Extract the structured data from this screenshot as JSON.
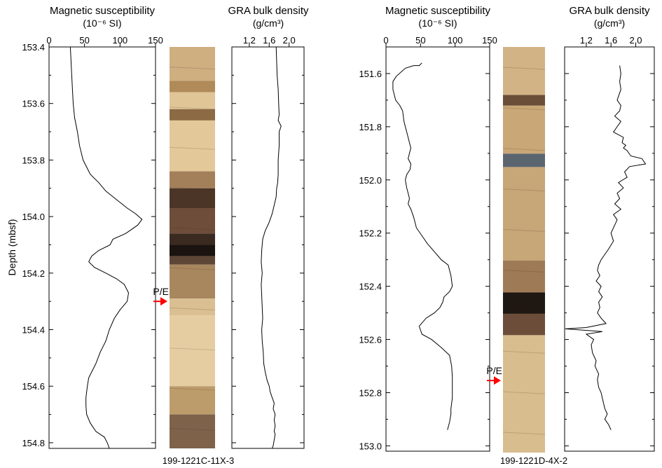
{
  "chart_data": [
    {
      "type": "line",
      "title": "Magnetic susceptibility",
      "units": "(10⁻⁶ SI)",
      "xticks": [
        "0",
        "50",
        "100",
        "150"
      ],
      "xlim": [
        0,
        150
      ],
      "ylabel": "Depth (mbsf)",
      "yticks": [
        "153.4",
        "153.6",
        "153.8",
        "154.0",
        "154.2",
        "154.4",
        "154.6",
        "154.8"
      ],
      "ylim": [
        153.4,
        154.82
      ],
      "y_inverted": true,
      "series": [
        {
          "x": [
            30,
            31,
            32,
            33,
            34,
            36,
            40,
            43,
            48,
            58,
            70,
            80,
            95,
            110,
            122,
            131,
            125,
            108,
            90,
            86,
            70,
            60,
            56,
            64,
            80,
            95,
            106,
            112,
            110,
            100,
            92,
            85,
            80,
            72,
            66,
            60,
            56,
            54,
            52,
            52,
            53,
            58,
            66,
            78,
            82,
            85
          ],
          "y": [
            153.4,
            153.45,
            153.5,
            153.55,
            153.6,
            153.65,
            153.7,
            153.75,
            153.8,
            153.85,
            153.88,
            153.91,
            153.94,
            153.97,
            153.99,
            154.01,
            154.03,
            154.06,
            154.08,
            154.1,
            154.12,
            154.14,
            154.16,
            154.18,
            154.2,
            154.22,
            154.24,
            154.27,
            154.3,
            154.33,
            154.36,
            154.4,
            154.44,
            154.48,
            154.52,
            154.55,
            154.57,
            154.6,
            154.64,
            154.67,
            154.7,
            154.73,
            154.76,
            154.78,
            154.8,
            154.82
          ]
        }
      ]
    },
    {
      "type": "line",
      "title": "GRA bulk density",
      "units": "(g/cm³)",
      "xticks": [
        "1.2",
        "1.6",
        "2.0"
      ],
      "xlim": [
        0.85,
        2.3
      ],
      "ylim": [
        153.4,
        154.82
      ],
      "y_inverted": true,
      "series": [
        {
          "x": [
            1.74,
            1.75,
            1.76,
            1.78,
            1.79,
            1.8,
            1.78,
            1.84,
            1.8,
            1.8,
            1.78,
            1.78,
            1.77,
            1.75,
            1.74,
            1.7,
            1.66,
            1.6,
            1.52,
            1.47,
            1.45,
            1.44,
            1.46,
            1.44,
            1.45,
            1.46,
            1.47,
            1.45,
            1.46,
            1.48,
            1.49,
            1.52,
            1.56,
            1.6,
            1.62,
            1.66,
            1.7,
            1.68,
            1.72,
            1.7,
            1.72,
            1.7,
            1.72,
            1.7,
            1.68,
            1.66
          ],
          "y": [
            153.4,
            153.45,
            153.5,
            153.55,
            153.6,
            153.64,
            153.66,
            153.68,
            153.7,
            153.75,
            153.8,
            153.85,
            153.88,
            153.9,
            153.93,
            153.96,
            153.99,
            154.02,
            154.05,
            154.08,
            154.12,
            154.16,
            154.2,
            154.24,
            154.28,
            154.32,
            154.36,
            154.4,
            154.44,
            154.48,
            154.52,
            154.55,
            154.58,
            154.6,
            154.62,
            154.64,
            154.66,
            154.68,
            154.7,
            154.72,
            154.74,
            154.76,
            154.77,
            154.79,
            154.81,
            154.82
          ]
        }
      ]
    },
    {
      "type": "line",
      "title": "Magnetic susceptibility",
      "units": "(10⁻⁶ SI)",
      "xticks": [
        "0",
        "50",
        "100",
        "150"
      ],
      "xlim": [
        0,
        150
      ],
      "yticks": [
        "151.6",
        "151.8",
        "152.0",
        "152.2",
        "152.4",
        "152.6",
        "152.8",
        "153.0"
      ],
      "ylim": [
        151.5,
        153.02
      ],
      "y_inverted": true,
      "series": [
        {
          "x": [
            52,
            48,
            40,
            28,
            15,
            10,
            10,
            14,
            20,
            24,
            26,
            28,
            30,
            32,
            34,
            36,
            34,
            32,
            36,
            35,
            30,
            28,
            30,
            32,
            34,
            32,
            36,
            40,
            44,
            52,
            60,
            70,
            80,
            90,
            94,
            96,
            92,
            84,
            82,
            78,
            70,
            58,
            48,
            52,
            66,
            80,
            92,
            95,
            96,
            96,
            96,
            94,
            94,
            92,
            90,
            89
          ],
          "y": [
            151.56,
            151.57,
            151.57,
            151.58,
            151.61,
            151.63,
            151.66,
            151.7,
            151.72,
            151.74,
            151.78,
            151.8,
            151.82,
            151.84,
            151.86,
            151.88,
            151.9,
            151.92,
            151.94,
            151.96,
            151.98,
            152.0,
            152.03,
            152.05,
            152.07,
            152.09,
            152.11,
            152.14,
            152.18,
            152.21,
            152.24,
            152.27,
            152.3,
            152.32,
            152.36,
            152.4,
            152.42,
            152.44,
            152.46,
            152.48,
            152.5,
            152.52,
            152.55,
            152.58,
            152.6,
            152.63,
            152.66,
            152.7,
            152.74,
            152.78,
            152.82,
            152.86,
            152.88,
            152.91,
            152.93,
            152.94
          ]
        }
      ]
    },
    {
      "type": "line",
      "title": "GRA bulk density",
      "units": "(g/cm³)",
      "xticks": [
        "1.2",
        "1.6",
        "2.0"
      ],
      "xlim": [
        0.85,
        2.3
      ],
      "ylim": [
        151.5,
        153.02
      ],
      "y_inverted": true,
      "series": [
        {
          "x": [
            1.74,
            1.76,
            1.74,
            1.76,
            1.7,
            1.76,
            1.74,
            1.66,
            1.76,
            1.7,
            1.64,
            1.8,
            1.78,
            1.84,
            1.8,
            1.86,
            1.92,
            2.1,
            2.16,
            1.9,
            1.82,
            1.86,
            1.72,
            1.8,
            1.7,
            1.74,
            1.66,
            1.76,
            1.64,
            1.7,
            1.66,
            1.6,
            1.64,
            1.56,
            1.5,
            1.44,
            1.4,
            1.38,
            1.42,
            1.36,
            1.44,
            1.4,
            1.46,
            1.4,
            1.42,
            1.38,
            1.44,
            1.48,
            1.52,
            1.2,
            0.86,
            1.46,
            1.2,
            1.32,
            1.28,
            1.3,
            1.36,
            1.34,
            1.4,
            1.38,
            1.4,
            1.44,
            1.46,
            1.48,
            1.5,
            1.54,
            1.5,
            1.56,
            1.58,
            1.6
          ],
          "y": [
            151.57,
            151.6,
            151.63,
            151.66,
            151.7,
            151.72,
            151.74,
            151.76,
            151.78,
            151.8,
            151.82,
            151.84,
            151.86,
            151.87,
            151.88,
            151.89,
            151.91,
            151.92,
            151.94,
            151.95,
            151.97,
            151.99,
            152.01,
            152.03,
            152.05,
            152.07,
            152.09,
            152.11,
            152.13,
            152.15,
            152.17,
            152.2,
            152.23,
            152.26,
            152.28,
            152.3,
            152.32,
            152.34,
            152.36,
            152.38,
            152.4,
            152.42,
            152.44,
            152.46,
            152.48,
            152.5,
            152.52,
            152.53,
            152.54,
            152.555,
            152.56,
            152.57,
            152.58,
            152.6,
            152.62,
            152.65,
            152.68,
            152.7,
            152.73,
            152.75,
            152.78,
            152.8,
            152.82,
            152.84,
            152.86,
            152.88,
            152.9,
            152.92,
            152.93,
            152.94
          ]
        }
      ]
    }
  ],
  "cores": [
    {
      "label": "199-1221C-11X-3",
      "marker": "P/E",
      "marker_depth": 154.3,
      "ylim": [
        153.4,
        154.82
      ],
      "bands": [
        {
          "from": 153.4,
          "to": 153.52,
          "color": "#cfae80"
        },
        {
          "from": 153.52,
          "to": 153.56,
          "color": "#b08a58"
        },
        {
          "from": 153.56,
          "to": 153.62,
          "color": "#e0c597"
        },
        {
          "from": 153.62,
          "to": 153.66,
          "color": "#8c6a44"
        },
        {
          "from": 153.66,
          "to": 153.84,
          "color": "#e3c89a"
        },
        {
          "from": 153.84,
          "to": 153.9,
          "color": "#a3805a"
        },
        {
          "from": 153.9,
          "to": 153.97,
          "color": "#4a3526"
        },
        {
          "from": 153.97,
          "to": 154.06,
          "color": "#6e4d3a"
        },
        {
          "from": 154.06,
          "to": 154.1,
          "color": "#3b2a20"
        },
        {
          "from": 154.1,
          "to": 154.14,
          "color": "#1a130f"
        },
        {
          "from": 154.14,
          "to": 154.17,
          "color": "#5e4636"
        },
        {
          "from": 154.17,
          "to": 154.29,
          "color": "#a8875e"
        },
        {
          "from": 154.29,
          "to": 154.35,
          "color": "#d9bf92"
        },
        {
          "from": 154.35,
          "to": 154.6,
          "color": "#e6cda1"
        },
        {
          "from": 154.6,
          "to": 154.7,
          "color": "#bd9c6c"
        },
        {
          "from": 154.7,
          "to": 154.82,
          "color": "#7f624a"
        }
      ]
    },
    {
      "label": "199-1221D-4X-2",
      "marker": "P/E",
      "marker_depth": 152.75,
      "ylim": [
        151.5,
        153.02
      ],
      "bands": [
        {
          "from": 151.5,
          "to": 151.68,
          "color": "#d2b385"
        },
        {
          "from": 151.68,
          "to": 151.72,
          "color": "#6a4e38"
        },
        {
          "from": 151.72,
          "to": 151.9,
          "color": "#c9a776"
        },
        {
          "from": 151.9,
          "to": 151.95,
          "color": "#5a6570"
        },
        {
          "from": 151.95,
          "to": 152.3,
          "color": "#c7a677"
        },
        {
          "from": 152.3,
          "to": 152.42,
          "color": "#9e7b56"
        },
        {
          "from": 152.42,
          "to": 152.5,
          "color": "#1f1711"
        },
        {
          "from": 152.5,
          "to": 152.58,
          "color": "#6b4d3a"
        },
        {
          "from": 152.58,
          "to": 153.02,
          "color": "#d8bd8e"
        }
      ]
    }
  ]
}
